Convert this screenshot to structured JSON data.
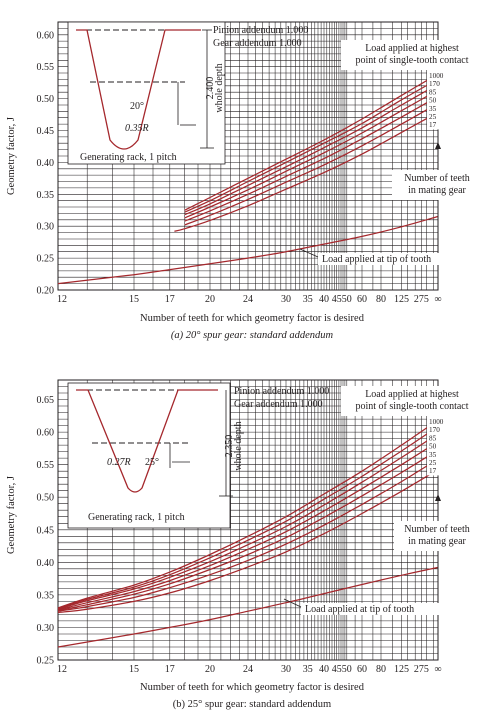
{
  "colors": {
    "curve": "#a5282d",
    "grid": "#231f20",
    "text": "#231f20",
    "background": "#ffffff"
  },
  "chart_data": [
    {
      "type": "line",
      "panel": "a",
      "caption": "(a) 20° spur gear: standard addendum",
      "xlabel": "Number of teeth for which geometry factor is desired",
      "ylabel": "Geometry factor, J",
      "x_scale": "reciprocal",
      "x_ticks": [
        "12",
        "15",
        "17",
        "20",
        "24",
        "30",
        "35",
        "40",
        "45",
        "50",
        "60",
        "80",
        "125",
        "275",
        "∞"
      ],
      "y_ticks": [
        "0.20",
        "0.25",
        "0.30",
        "0.35",
        "0.40",
        "0.45",
        "0.50",
        "0.55",
        "0.60"
      ],
      "ylim": [
        0.2,
        0.62
      ],
      "grid": true,
      "inset": {
        "title": "Generating rack, 1 pitch",
        "pinion": "Pinion addendum 1.000",
        "gear": "Gear addendum 1.000",
        "depth": "2.400",
        "depth_label": "whole depth",
        "angle": "20°",
        "fillet": "0.35R"
      },
      "highest_point_label": "Load applied at highest point of single-tooth contact",
      "mating_label": "Number of teeth in mating gear",
      "tip_label": "Load applied at tip of tooth",
      "series": [
        {
          "name": "1000",
          "x": [
            18,
            20,
            24,
            30,
            40,
            60,
            125,
            10000
          ],
          "y": [
            0.325,
            0.345,
            0.375,
            0.405,
            0.435,
            0.468,
            0.505,
            0.538
          ]
        },
        {
          "name": "170",
          "x": [
            18,
            20,
            24,
            30,
            40,
            60,
            125,
            10000
          ],
          "y": [
            0.322,
            0.34,
            0.37,
            0.4,
            0.43,
            0.461,
            0.498,
            0.53
          ]
        },
        {
          "name": "85",
          "x": [
            18,
            20,
            24,
            30,
            40,
            60,
            125,
            10000
          ],
          "y": [
            0.318,
            0.335,
            0.364,
            0.393,
            0.423,
            0.454,
            0.49,
            0.522
          ]
        },
        {
          "name": "50",
          "x": [
            18,
            20,
            24,
            30,
            40,
            60,
            125,
            10000
          ],
          "y": [
            0.313,
            0.33,
            0.357,
            0.386,
            0.415,
            0.446,
            0.481,
            0.513
          ]
        },
        {
          "name": "35",
          "x": [
            18,
            20,
            24,
            30,
            40,
            60,
            125,
            10000
          ],
          "y": [
            0.308,
            0.324,
            0.35,
            0.378,
            0.406,
            0.437,
            0.471,
            0.503
          ]
        },
        {
          "name": "25",
          "x": [
            18,
            20,
            24,
            30,
            40,
            60,
            125,
            10000
          ],
          "y": [
            0.302,
            0.317,
            0.342,
            0.369,
            0.396,
            0.426,
            0.46,
            0.492
          ]
        },
        {
          "name": "17",
          "x": [
            17.3,
            18,
            20,
            24,
            30,
            40,
            60,
            125,
            10000
          ],
          "y": [
            0.292,
            0.296,
            0.309,
            0.332,
            0.358,
            0.384,
            0.413,
            0.447,
            0.478
          ]
        },
        {
          "name": "Load applied at tip of tooth",
          "x": [
            12,
            15,
            17,
            20,
            24,
            30,
            40,
            60,
            125,
            10000
          ],
          "y": [
            0.21,
            0.224,
            0.232,
            0.241,
            0.25,
            0.26,
            0.272,
            0.284,
            0.299,
            0.315
          ]
        }
      ]
    },
    {
      "type": "line",
      "panel": "b",
      "caption": "(b) 25° spur gear: standard addendum",
      "xlabel": "Number of teeth for which geometry factor is desired",
      "ylabel": "Geometry factor, J",
      "x_scale": "reciprocal",
      "x_ticks": [
        "12",
        "15",
        "17",
        "20",
        "24",
        "30",
        "35",
        "40",
        "45",
        "50",
        "60",
        "80",
        "125",
        "275",
        "∞"
      ],
      "y_ticks": [
        "0.25",
        "0.30",
        "0.35",
        "0.40",
        "0.45",
        "0.50",
        "0.55",
        "0.60",
        "0.65"
      ],
      "ylim": [
        0.25,
        0.68
      ],
      "grid": true,
      "inset": {
        "title": "Generating rack, 1 pitch",
        "pinion": "Pinion addendum 1.000",
        "gear": "Gear addendum 1.000",
        "depth": "2.350",
        "depth_label": "whole depth",
        "angle": "25°",
        "fillet": "0.27R"
      },
      "highest_point_label": "Load applied at highest point of single-tooth contact",
      "mating_label": "Number of teeth in mating gear",
      "tip_label": "Load applied at tip of tooth",
      "series": [
        {
          "name": "1000",
          "x": [
            12,
            13,
            15,
            17,
            20,
            24,
            30,
            40,
            60,
            125,
            10000
          ],
          "y": [
            0.33,
            0.345,
            0.365,
            0.385,
            0.412,
            0.44,
            0.47,
            0.505,
            0.54,
            0.58,
            0.618
          ]
        },
        {
          "name": "170",
          "x": [
            12,
            13,
            15,
            17,
            20,
            24,
            30,
            40,
            60,
            125,
            10000
          ],
          "y": [
            0.329,
            0.343,
            0.362,
            0.381,
            0.407,
            0.434,
            0.463,
            0.497,
            0.532,
            0.571,
            0.608
          ]
        },
        {
          "name": "85",
          "x": [
            12,
            13,
            15,
            17,
            20,
            24,
            30,
            40,
            60,
            125,
            10000
          ],
          "y": [
            0.328,
            0.341,
            0.359,
            0.377,
            0.401,
            0.427,
            0.455,
            0.488,
            0.523,
            0.561,
            0.597
          ]
        },
        {
          "name": "50",
          "x": [
            12,
            13,
            15,
            17,
            20,
            24,
            30,
            40,
            60,
            125,
            10000
          ],
          "y": [
            0.327,
            0.338,
            0.355,
            0.372,
            0.395,
            0.42,
            0.447,
            0.479,
            0.513,
            0.55,
            0.585
          ]
        },
        {
          "name": "35",
          "x": [
            12,
            13,
            15,
            17,
            20,
            24,
            30,
            40,
            60,
            125,
            10000
          ],
          "y": [
            0.326,
            0.335,
            0.351,
            0.367,
            0.389,
            0.412,
            0.438,
            0.469,
            0.502,
            0.538,
            0.572
          ]
        },
        {
          "name": "25",
          "x": [
            12,
            13,
            15,
            17,
            20,
            24,
            30,
            40,
            60,
            125,
            10000
          ],
          "y": [
            0.325,
            0.332,
            0.346,
            0.361,
            0.381,
            0.403,
            0.428,
            0.457,
            0.489,
            0.524,
            0.558
          ]
        },
        {
          "name": "17",
          "x": [
            12,
            13,
            15,
            17,
            20,
            24,
            30,
            40,
            60,
            125,
            10000
          ],
          "y": [
            0.323,
            0.328,
            0.34,
            0.353,
            0.372,
            0.393,
            0.416,
            0.444,
            0.475,
            0.509,
            0.542
          ]
        },
        {
          "name": "Load applied at tip of tooth",
          "x": [
            12,
            15,
            17,
            20,
            24,
            30,
            40,
            60,
            125,
            10000
          ],
          "y": [
            0.27,
            0.29,
            0.3,
            0.312,
            0.325,
            0.338,
            0.352,
            0.366,
            0.38,
            0.392
          ]
        }
      ]
    }
  ]
}
